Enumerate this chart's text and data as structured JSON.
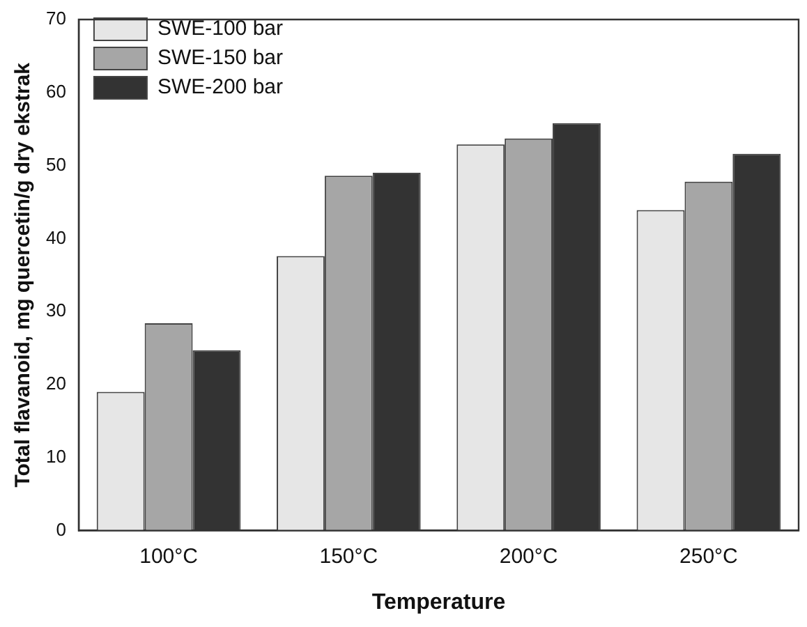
{
  "chart_data": {
    "type": "bar",
    "xlabel": "Temperature",
    "ylabel": "Total flavanoid, mg quercetin/g dry ekstrak",
    "categories": [
      "100°C",
      "150°C",
      "200°C",
      "250°C"
    ],
    "series": [
      {
        "name": "SWE-100 bar",
        "color": "#e6e6e6",
        "values": [
          19.0,
          37.6,
          52.9,
          43.9
        ]
      },
      {
        "name": "SWE-150 bar",
        "color": "#a6a6a6",
        "values": [
          28.4,
          48.6,
          53.7,
          47.8
        ]
      },
      {
        "name": "SWE-200 bar",
        "color": "#333333",
        "values": [
          24.7,
          49.0,
          55.8,
          51.6
        ]
      }
    ],
    "ylim": [
      0,
      70
    ],
    "yticks": [
      0,
      10,
      20,
      30,
      40,
      50,
      60,
      70
    ],
    "grid": false,
    "legend": "top left"
  }
}
